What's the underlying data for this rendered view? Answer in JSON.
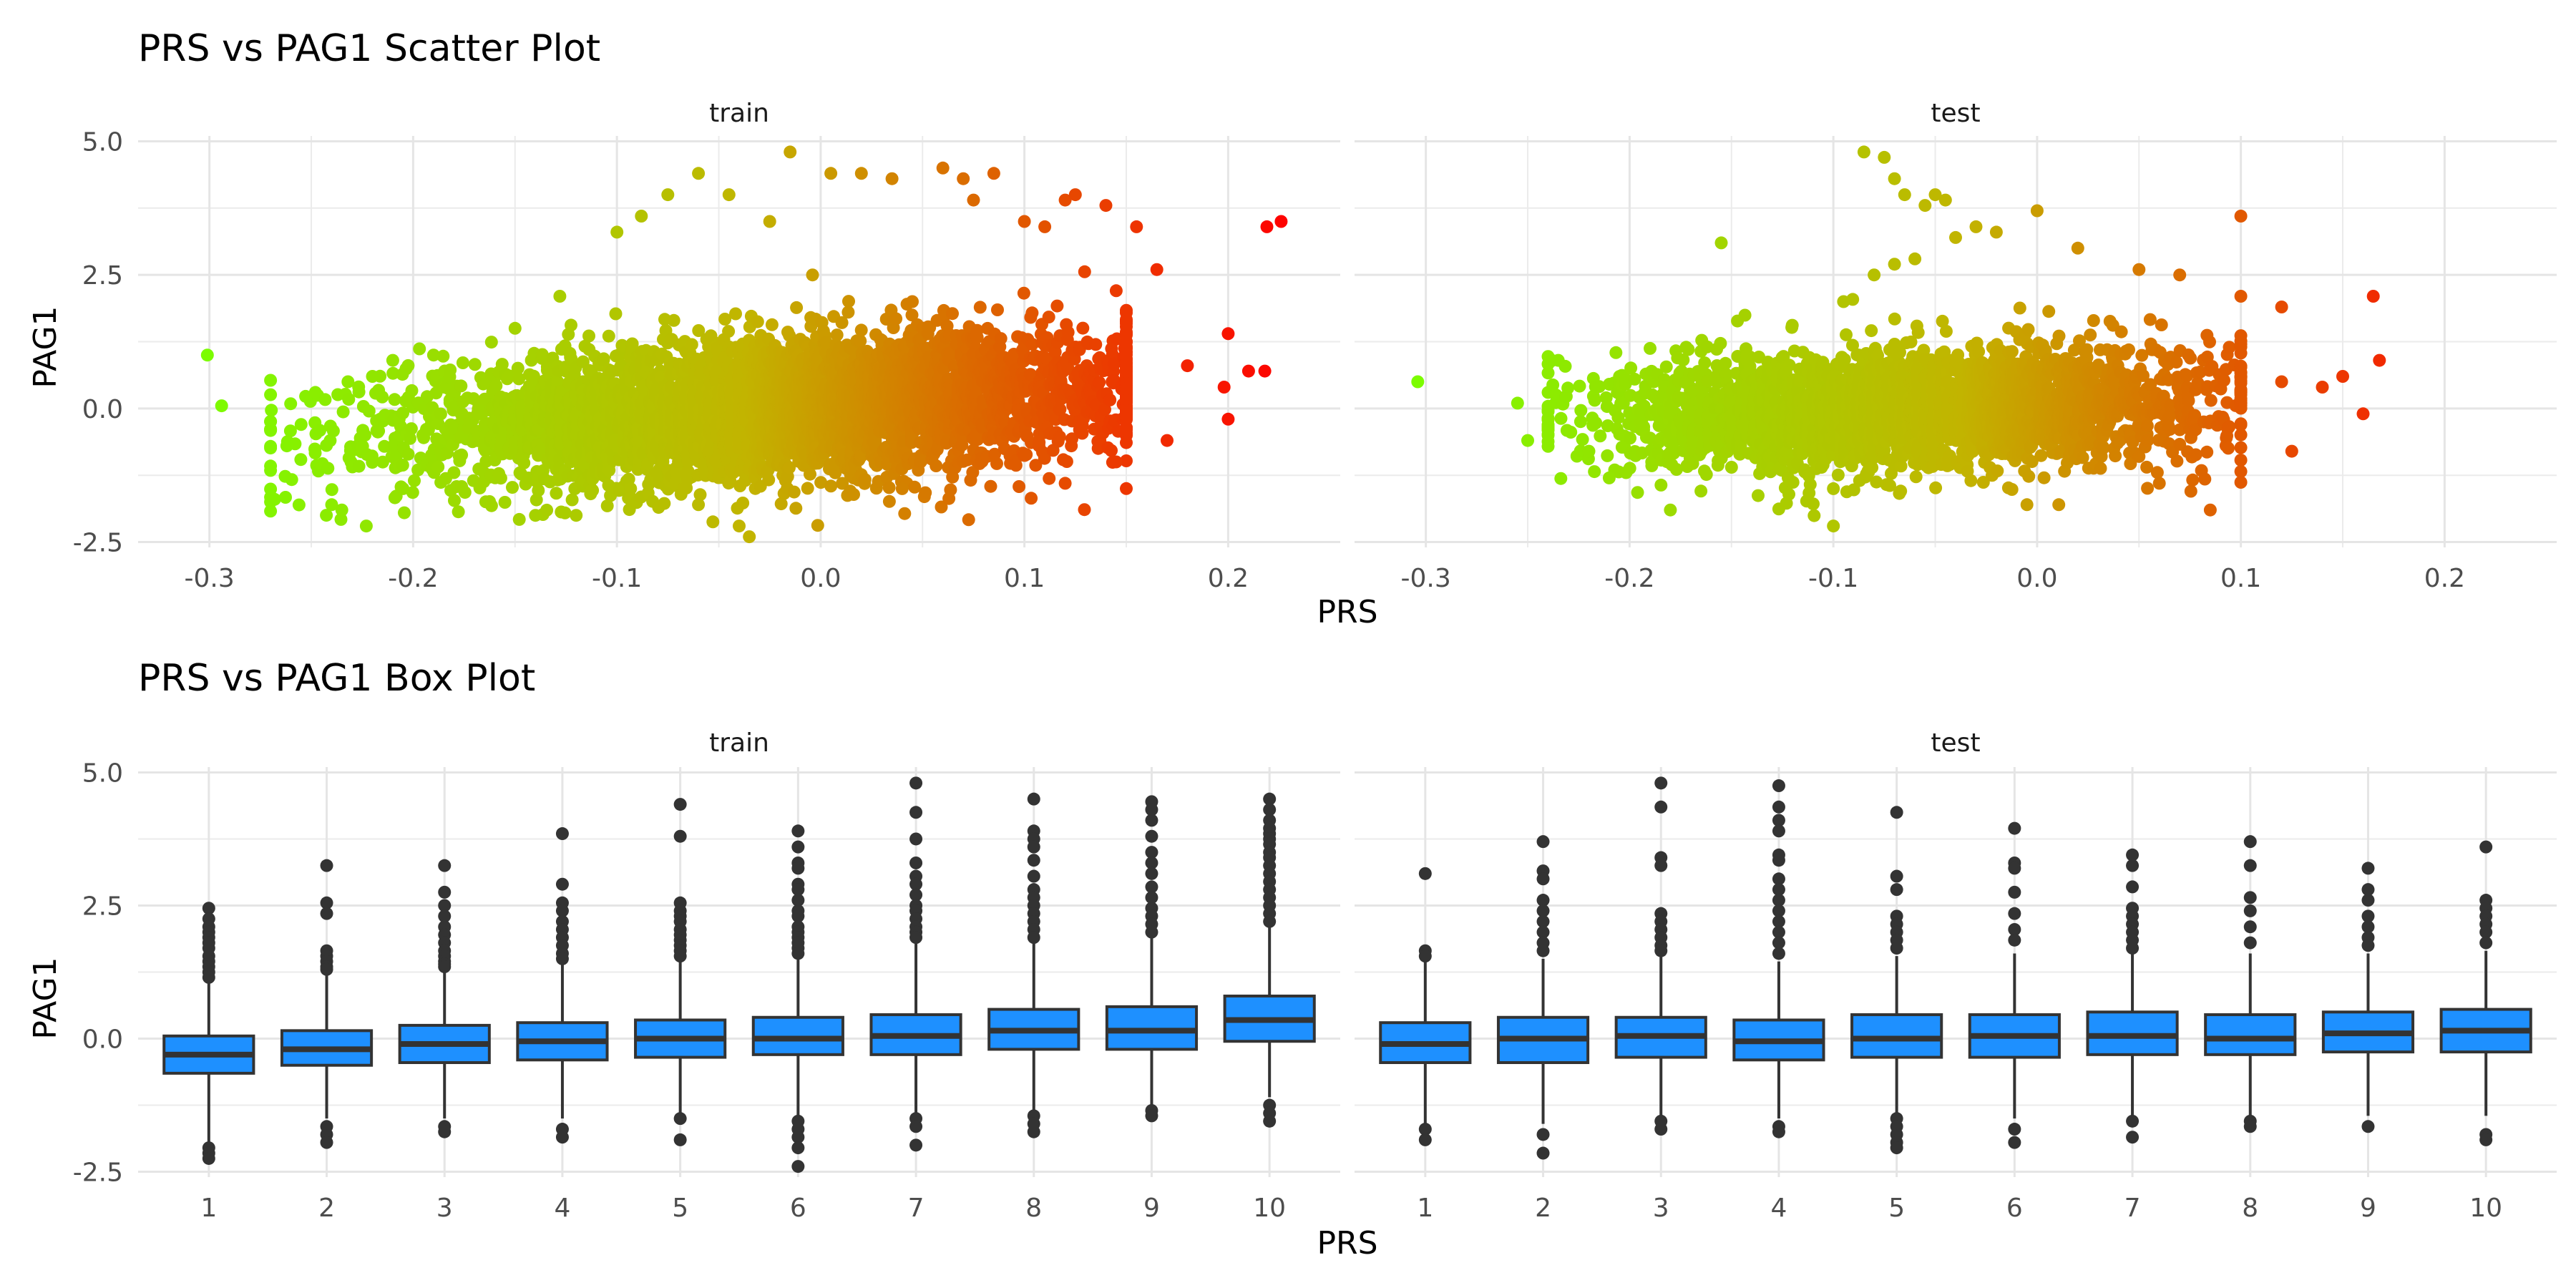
{
  "chart_data": [
    {
      "type": "scatter",
      "title": "PRS vs PAG1 Scatter Plot",
      "xlabel": "PRS",
      "ylabel": "PAG1",
      "facets": [
        "train",
        "test"
      ],
      "xlim": [
        -0.335,
        0.255
      ],
      "ylim": [
        -2.6,
        5.1
      ],
      "xticks": [
        -0.3,
        -0.2,
        -0.1,
        0.0,
        0.1,
        0.2
      ],
      "xtick_labels": [
        "-0.3",
        "-0.2",
        "-0.1",
        "0.0",
        "0.1",
        "0.2"
      ],
      "yticks": [
        -2.5,
        0.0,
        2.5,
        5.0
      ],
      "ytick_labels": [
        "-2.5",
        "0.0",
        "2.5",
        "5.0"
      ],
      "color_scale": {
        "low": "#7cfc00",
        "mid": "#c2b400",
        "high": "#ff0000",
        "domain": [
          -0.3,
          0.23
        ]
      },
      "grid": true,
      "legend": "none",
      "series": [
        {
          "facet": "train",
          "x": [
            -0.301,
            -0.294,
            -0.268,
            -0.262,
            -0.255,
            -0.248,
            -0.24,
            -0.232,
            -0.235,
            -0.223,
            -0.21,
            -0.205,
            -0.15,
            -0.14,
            -0.128,
            -0.12,
            -0.1,
            -0.088,
            -0.075,
            -0.06,
            -0.045,
            -0.035,
            -0.025,
            -0.015,
            -0.004,
            0.005,
            0.02,
            0.035,
            0.045,
            0.06,
            0.07,
            0.075,
            0.085,
            0.1,
            0.11,
            0.12,
            0.125,
            0.14,
            0.145,
            0.155,
            0.165,
            0.17,
            0.18,
            0.198,
            0.2,
            0.2,
            0.21,
            0.218,
            0.219,
            0.226,
            -0.18,
            -0.19,
            -0.06,
            -0.04,
            0.04,
            0.12,
            -0.22
          ],
          "y": [
            1.0,
            0.05,
            -1.7,
            -0.7,
            -0.3,
            0.3,
            -1.8,
            0.5,
            -1.9,
            -2.2,
            0.9,
            -1.5,
            1.5,
            -2.0,
            2.1,
            -2.0,
            3.3,
            3.6,
            4.0,
            4.4,
            4.0,
            -2.4,
            3.5,
            4.8,
            2.5,
            4.4,
            4.4,
            4.3,
            2.0,
            4.5,
            4.3,
            3.9,
            4.4,
            3.5,
            3.4,
            3.9,
            4.0,
            3.8,
            -1.0,
            3.4,
            2.6,
            -0.6,
            0.8,
            0.4,
            1.4,
            -0.2,
            0.7,
            0.7,
            3.4,
            3.5,
            -1.2,
            1.0,
            -1.8,
            -2.2,
            -1.5,
            -1.4,
            0.6
          ],
          "cloud": {
            "x_range": [
              -0.25,
              0.13
            ],
            "center": [
              -0.02,
              0.0
            ],
            "y_sd": 0.65,
            "trend_slope": 2.2,
            "n_points_drawn": 4200
          }
        },
        {
          "facet": "test",
          "x": [
            -0.304,
            -0.255,
            -0.25,
            -0.24,
            -0.235,
            -0.22,
            -0.21,
            -0.18,
            -0.155,
            -0.15,
            -0.1,
            -0.1,
            -0.095,
            -0.085,
            -0.08,
            -0.075,
            -0.07,
            -0.07,
            -0.065,
            -0.06,
            -0.055,
            -0.05,
            -0.045,
            -0.04,
            -0.03,
            -0.02,
            -0.005,
            0.0,
            0.02,
            0.05,
            0.06,
            0.085,
            0.1,
            0.12,
            0.125,
            0.14,
            0.15,
            0.16,
            0.165,
            0.168,
            0.1,
            0.12,
            0.07
          ],
          "y": [
            0.5,
            0.1,
            -0.6,
            -0.4,
            0.9,
            -0.8,
            -1.3,
            -1.9,
            3.1,
            -1.1,
            -1.5,
            -2.2,
            2.0,
            4.8,
            2.5,
            4.7,
            2.7,
            4.3,
            4.0,
            2.8,
            3.8,
            4.0,
            3.9,
            3.2,
            3.4,
            3.3,
            -1.8,
            3.7,
            3.0,
            2.6,
            -1.4,
            -1.9,
            3.6,
            1.9,
            -0.8,
            0.4,
            0.6,
            -0.1,
            2.1,
            0.9,
            2.1,
            0.5,
            2.5
          ],
          "cloud": {
            "x_range": [
              -0.22,
              0.08
            ],
            "center": [
              -0.06,
              0.0
            ],
            "y_sd": 0.55,
            "trend_slope": 1.2,
            "n_points_drawn": 3000
          }
        }
      ]
    },
    {
      "type": "box",
      "title": "PRS vs PAG1 Box Plot",
      "xlabel": "PRS",
      "ylabel": "PAG1",
      "facets": [
        "train",
        "test"
      ],
      "categories": [
        "1",
        "2",
        "3",
        "4",
        "5",
        "6",
        "7",
        "8",
        "9",
        "10"
      ],
      "ylim": [
        -2.6,
        5.1
      ],
      "yticks": [
        -2.5,
        0.0,
        2.5,
        5.0
      ],
      "ytick_labels": [
        "-2.5",
        "0.0",
        "2.5",
        "5.0"
      ],
      "box_fill": "#1e90ff",
      "box_stroke": "#333333",
      "grid": true,
      "legend": "none",
      "series": [
        {
          "facet": "train",
          "boxes": [
            {
              "q1": -0.65,
              "median": -0.3,
              "q3": 0.05,
              "whisker_low": -1.95,
              "whisker_high": 1.1,
              "outliers": [
                2.45,
                2.25,
                2.1,
                2.0,
                1.9,
                1.8,
                1.7,
                1.55,
                1.45,
                1.35,
                1.25,
                1.15,
                -2.05,
                -2.15,
                -2.25
              ]
            },
            {
              "q1": -0.5,
              "median": -0.2,
              "q3": 0.15,
              "whisker_low": -1.5,
              "whisker_high": 1.2,
              "outliers": [
                3.25,
                2.55,
                2.35,
                1.65,
                1.55,
                1.45,
                1.35,
                1.3,
                -1.65,
                -1.8,
                -1.95
              ]
            },
            {
              "q1": -0.45,
              "median": -0.1,
              "q3": 0.25,
              "whisker_low": -1.5,
              "whisker_high": 1.3,
              "outliers": [
                3.25,
                2.75,
                2.5,
                2.3,
                2.1,
                1.95,
                1.8,
                1.65,
                1.55,
                1.45,
                1.4,
                1.35,
                -1.65,
                -1.75
              ]
            },
            {
              "q1": -0.4,
              "median": -0.05,
              "q3": 0.3,
              "whisker_low": -1.5,
              "whisker_high": 1.4,
              "outliers": [
                3.85,
                2.9,
                2.55,
                2.4,
                2.2,
                2.05,
                1.9,
                1.75,
                1.6,
                1.5,
                -1.7,
                -1.85
              ]
            },
            {
              "q1": -0.35,
              "median": 0.0,
              "q3": 0.35,
              "whisker_low": -1.45,
              "whisker_high": 1.5,
              "outliers": [
                4.4,
                3.8,
                2.55,
                2.4,
                2.3,
                2.2,
                2.05,
                1.95,
                1.85,
                1.75,
                1.65,
                1.55,
                -1.5,
                -1.9
              ]
            },
            {
              "q1": -0.3,
              "median": 0.0,
              "q3": 0.4,
              "whisker_low": -1.45,
              "whisker_high": 1.5,
              "outliers": [
                3.9,
                3.6,
                3.3,
                3.2,
                2.9,
                2.8,
                2.6,
                2.4,
                2.3,
                2.1,
                2.0,
                1.9,
                1.8,
                1.7,
                1.6,
                -1.55,
                -1.7,
                -1.85,
                -2.05,
                -2.4
              ]
            },
            {
              "q1": -0.3,
              "median": 0.05,
              "q3": 0.45,
              "whisker_low": -1.4,
              "whisker_high": 1.8,
              "outliers": [
                4.8,
                4.25,
                3.75,
                3.3,
                3.05,
                2.9,
                2.7,
                2.5,
                2.4,
                2.25,
                2.1,
                2.0,
                1.9,
                -1.5,
                -1.65,
                -2.0
              ]
            },
            {
              "q1": -0.2,
              "median": 0.15,
              "q3": 0.55,
              "whisker_low": -1.35,
              "whisker_high": 1.8,
              "outliers": [
                4.5,
                3.9,
                3.75,
                3.6,
                3.35,
                3.05,
                2.8,
                2.65,
                2.5,
                2.35,
                2.2,
                2.05,
                1.9,
                -1.45,
                -1.6,
                -1.75
              ]
            },
            {
              "q1": -0.2,
              "median": 0.15,
              "q3": 0.6,
              "whisker_low": -1.3,
              "whisker_high": 1.9,
              "outliers": [
                4.45,
                4.3,
                4.1,
                3.8,
                3.5,
                3.3,
                3.1,
                2.85,
                2.65,
                2.45,
                2.3,
                2.15,
                2.0,
                -1.35,
                -1.45
              ]
            },
            {
              "q1": -0.05,
              "median": 0.35,
              "q3": 0.8,
              "whisker_low": -1.1,
              "whisker_high": 2.1,
              "outliers": [
                4.5,
                4.3,
                4.1,
                3.95,
                3.85,
                3.75,
                3.65,
                3.5,
                3.4,
                3.25,
                3.1,
                2.95,
                2.8,
                2.65,
                2.5,
                2.35,
                2.2,
                -1.25,
                -1.4,
                -1.55
              ]
            }
          ]
        },
        {
          "facet": "test",
          "boxes": [
            {
              "q1": -0.45,
              "median": -0.1,
              "q3": 0.3,
              "whisker_low": -1.6,
              "whisker_high": 1.45,
              "outliers": [
                3.1,
                1.65,
                1.55,
                -1.7,
                -1.9
              ]
            },
            {
              "q1": -0.45,
              "median": 0.0,
              "q3": 0.4,
              "whisker_low": -1.6,
              "whisker_high": 1.5,
              "outliers": [
                3.7,
                3.15,
                3.0,
                2.6,
                2.4,
                2.2,
                2.0,
                1.8,
                1.65,
                -1.8,
                -2.15
              ]
            },
            {
              "q1": -0.35,
              "median": 0.05,
              "q3": 0.4,
              "whisker_low": -1.5,
              "whisker_high": 1.55,
              "outliers": [
                4.8,
                4.35,
                3.4,
                3.25,
                2.35,
                2.2,
                2.05,
                1.9,
                1.75,
                1.65,
                -1.55,
                -1.7
              ]
            },
            {
              "q1": -0.4,
              "median": -0.05,
              "q3": 0.35,
              "whisker_low": -1.5,
              "whisker_high": 1.45,
              "outliers": [
                4.75,
                4.35,
                4.1,
                3.9,
                3.45,
                3.35,
                3.0,
                2.8,
                2.6,
                2.4,
                2.2,
                2.0,
                1.8,
                1.6,
                -1.65,
                -1.75
              ]
            },
            {
              "q1": -0.35,
              "median": 0.0,
              "q3": 0.45,
              "whisker_low": -1.45,
              "whisker_high": 1.55,
              "outliers": [
                4.25,
                3.05,
                2.8,
                2.3,
                2.15,
                2.0,
                1.85,
                1.7,
                -1.5,
                -1.65,
                -1.8,
                -1.95,
                -2.05
              ]
            },
            {
              "q1": -0.35,
              "median": 0.05,
              "q3": 0.45,
              "whisker_low": -1.5,
              "whisker_high": 1.6,
              "outliers": [
                3.95,
                3.3,
                3.2,
                2.75,
                2.35,
                2.05,
                1.85,
                -1.7,
                -1.95
              ]
            },
            {
              "q1": -0.3,
              "median": 0.05,
              "q3": 0.5,
              "whisker_low": -1.45,
              "whisker_high": 1.6,
              "outliers": [
                3.45,
                3.25,
                2.85,
                2.45,
                2.3,
                2.15,
                2.0,
                1.85,
                1.7,
                -1.55,
                -1.85
              ]
            },
            {
              "q1": -0.3,
              "median": 0.0,
              "q3": 0.45,
              "whisker_low": -1.45,
              "whisker_high": 1.6,
              "outliers": [
                3.7,
                3.25,
                2.65,
                2.4,
                2.1,
                1.8,
                -1.55,
                -1.65
              ]
            },
            {
              "q1": -0.25,
              "median": 0.1,
              "q3": 0.5,
              "whisker_low": -1.45,
              "whisker_high": 1.6,
              "outliers": [
                3.2,
                2.8,
                2.6,
                2.3,
                2.1,
                1.9,
                1.75,
                -1.65
              ]
            },
            {
              "q1": -0.25,
              "median": 0.15,
              "q3": 0.55,
              "whisker_low": -1.45,
              "whisker_high": 1.65,
              "outliers": [
                3.6,
                2.6,
                2.45,
                2.3,
                2.15,
                2.0,
                1.8,
                -1.8,
                -1.9
              ]
            }
          ]
        }
      ]
    }
  ]
}
